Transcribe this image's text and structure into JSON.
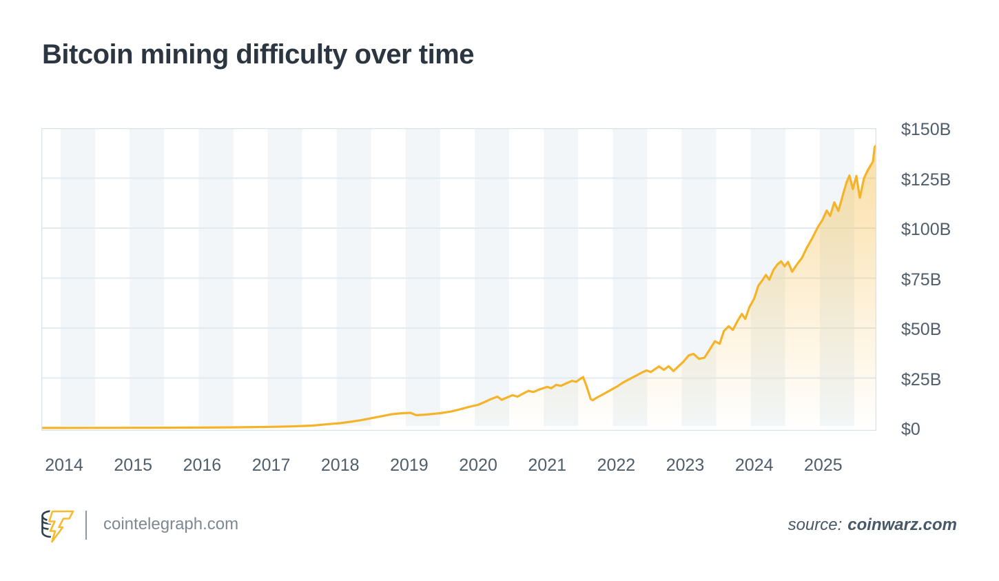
{
  "title": "Bitcoin mining difficulty over time",
  "footer": {
    "brand": "cointelegraph.com",
    "source_label": "source:",
    "source_value": "coinwarz.com",
    "logo_icon": "cointelegraph-coin-bolt-logo"
  },
  "colors": {
    "line": "#F5B32A",
    "fill_top": "rgba(244,177,40,0.42)",
    "fill_bottom": "rgba(244,177,40,0)",
    "stripe": "#F2F6F8",
    "gridline": "#E3EBF0",
    "border": "#D8E2E9",
    "title_text": "#2B3640",
    "tick_text": "#4F5E6C",
    "footer_text": "#7E8893",
    "source_text": "#47586A"
  },
  "chart_data": {
    "type": "area",
    "title": "Bitcoin mining difficulty over time",
    "unit": "USD billions",
    "xlabel": "",
    "ylabel": "",
    "x_ticks": [
      "2014",
      "2015",
      "2016",
      "2017",
      "2018",
      "2019",
      "2020",
      "2021",
      "2022",
      "2023",
      "2024",
      "2025"
    ],
    "x_tick_years": [
      2014,
      2015,
      2016,
      2017,
      2018,
      2019,
      2020,
      2021,
      2022,
      2023,
      2024,
      2025
    ],
    "y_ticks": [
      "$0",
      "$25B",
      "$50B",
      "$75B",
      "$100B",
      "$125B",
      "$150B"
    ],
    "y_tick_values": [
      0,
      25,
      50,
      75,
      100,
      125,
      150
    ],
    "xlim": [
      2013.67,
      2025.76
    ],
    "ylim": [
      0,
      150
    ],
    "grid": "horizontal",
    "background_stripes": "alternating half-year vertical bands",
    "legend": "none",
    "series": [
      {
        "name": "Bitcoin mining difficulty (USD billions)",
        "x": [
          2013.67,
          2014.0,
          2014.5,
          2015.0,
          2015.5,
          2016.0,
          2016.5,
          2017.0,
          2017.3,
          2017.6,
          2017.85,
          2018.0,
          2018.15,
          2018.3,
          2018.45,
          2018.6,
          2018.75,
          2018.9,
          2019.02,
          2019.1,
          2019.2,
          2019.3,
          2019.45,
          2019.6,
          2019.72,
          2019.85,
          2019.95,
          2020.0,
          2020.1,
          2020.18,
          2020.28,
          2020.34,
          2020.42,
          2020.5,
          2020.57,
          2020.65,
          2020.73,
          2020.8,
          2020.88,
          2020.95,
          2021.0,
          2021.06,
          2021.13,
          2021.2,
          2021.28,
          2021.36,
          2021.42,
          2021.48,
          2021.52,
          2021.57,
          2021.63,
          2021.66,
          2021.72,
          2021.8,
          2021.88,
          2021.95,
          2022.02,
          2022.1,
          2022.2,
          2022.3,
          2022.38,
          2022.44,
          2022.5,
          2022.56,
          2022.62,
          2022.69,
          2022.76,
          2022.83,
          2022.9,
          2022.97,
          2023.05,
          2023.12,
          2023.2,
          2023.28,
          2023.36,
          2023.43,
          2023.5,
          2023.56,
          2023.63,
          2023.69,
          2023.76,
          2023.82,
          2023.87,
          2023.93,
          2024.0,
          2024.06,
          2024.12,
          2024.17,
          2024.22,
          2024.28,
          2024.34,
          2024.39,
          2024.44,
          2024.49,
          2024.55,
          2024.62,
          2024.69,
          2024.76,
          2024.84,
          2024.92,
          2024.99,
          2025.05,
          2025.1,
          2025.16,
          2025.22,
          2025.29,
          2025.34,
          2025.38,
          2025.43,
          2025.48,
          2025.53,
          2025.59,
          2025.64,
          2025.69,
          2025.72,
          2025.745,
          2025.76
        ],
        "y": [
          0.03,
          0.05,
          0.08,
          0.1,
          0.13,
          0.2,
          0.35,
          0.6,
          0.8,
          1.2,
          2.0,
          2.4,
          3.1,
          3.9,
          4.9,
          5.9,
          6.9,
          7.4,
          7.6,
          6.4,
          6.6,
          6.9,
          7.4,
          8.2,
          9.2,
          10.4,
          11.2,
          11.6,
          13.1,
          14.4,
          15.7,
          14.1,
          15.3,
          16.4,
          15.7,
          17.2,
          18.6,
          18.0,
          19.2,
          20.0,
          20.6,
          19.9,
          21.6,
          21.1,
          22.4,
          23.6,
          23.1,
          24.6,
          25.5,
          21.0,
          14.5,
          13.9,
          15.2,
          16.7,
          18.2,
          19.6,
          20.9,
          22.8,
          24.6,
          26.4,
          27.9,
          28.8,
          28.0,
          29.4,
          30.8,
          29.1,
          30.9,
          28.5,
          30.8,
          33.0,
          36.3,
          37.1,
          34.6,
          35.2,
          39.5,
          43.4,
          42.1,
          48.5,
          50.9,
          49.1,
          53.7,
          57.1,
          54.6,
          60.5,
          64.8,
          71.2,
          74.0,
          76.6,
          74.2,
          79.2,
          82.0,
          83.4,
          80.9,
          83.1,
          78.2,
          81.9,
          85.0,
          90.0,
          94.9,
          100.4,
          104.2,
          108.8,
          106.1,
          112.9,
          108.6,
          117.2,
          123.1,
          126.3,
          119.6,
          126.1,
          115.2,
          124.9,
          128.6,
          131.6,
          133.2,
          140.6,
          141.2
        ]
      }
    ]
  }
}
